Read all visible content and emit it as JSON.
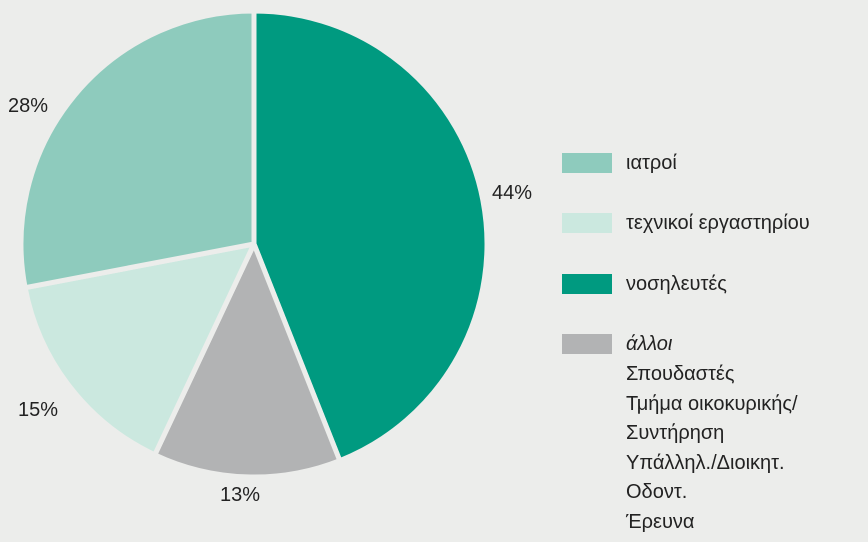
{
  "chart_data": {
    "type": "pie",
    "title": "",
    "slices": [
      {
        "name": "νοσηλευτές",
        "value": 44,
        "label": "44%",
        "color": "#009a80"
      },
      {
        "name": "άλλοι",
        "value": 13,
        "label": "13%",
        "color": "#b2b3b4"
      },
      {
        "name": "τεχνικοί εργαστηρίου",
        "value": 15,
        "label": "15%",
        "color": "#cbe8df"
      },
      {
        "name": "ιατροί",
        "value": 28,
        "label": "28%",
        "color": "#8ecbbd"
      }
    ],
    "legend": [
      {
        "name": "ιατροί",
        "color": "#8ecbbd"
      },
      {
        "name": "τεχνικοί εργαστηρίου",
        "color": "#cbe8df"
      },
      {
        "name": "νοσηλευτές",
        "color": "#009a80"
      },
      {
        "name": "άλλοι",
        "color": "#b2b3b4"
      }
    ],
    "other_breakdown": [
      "Σπουδαστές",
      "Τμήμα οικοκυρικής/",
      "Συντήρηση",
      "Υπάλληλ./Διοικητ.",
      "Οδοντ.",
      "Έρευνα"
    ],
    "legend_position": "right"
  },
  "colors": {
    "background": "#ecedeb",
    "separator": "#ecedeb"
  }
}
